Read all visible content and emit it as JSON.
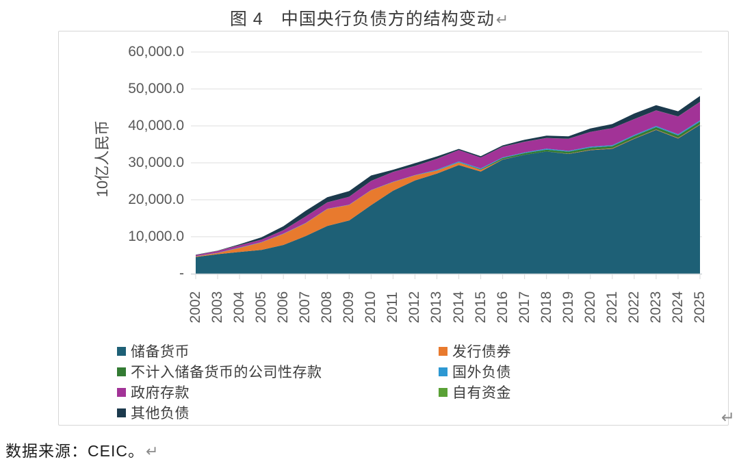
{
  "doc": {
    "title": "图 4　中国央行负债方的结构变动",
    "return_mark": "↵",
    "source": "数据来源：CEIC。"
  },
  "chart_data": {
    "type": "area",
    "stacked": true,
    "title": "中国央行负债方的结构变动",
    "xlabel": "",
    "ylabel": "10亿人民币",
    "ylim": [
      0,
      60000
    ],
    "grid": "horizontal",
    "legend_position": "bottom-two-columns",
    "y_ticks": [
      {
        "value": 60000,
        "label": "60,000.0"
      },
      {
        "value": 50000,
        "label": "50,000.0"
      },
      {
        "value": 40000,
        "label": "40,000.0"
      },
      {
        "value": 30000,
        "label": "30,000.0"
      },
      {
        "value": 20000,
        "label": "20,000.0"
      },
      {
        "value": 10000,
        "label": "10,000.0"
      },
      {
        "value": 0,
        "label": "-"
      }
    ],
    "x": [
      "2002",
      "2003",
      "2004",
      "2005",
      "2006",
      "2007",
      "2008",
      "2009",
      "2010",
      "2011",
      "2012",
      "2013",
      "2014",
      "2015",
      "2016",
      "2017",
      "2018",
      "2019",
      "2020",
      "2021",
      "2022",
      "2023",
      "2024",
      "2025"
    ],
    "series": [
      {
        "name": "储备货币",
        "color": "#1e6076",
        "values": [
          4514,
          5284,
          5886,
          6434,
          7776,
          10155,
          12922,
          14399,
          18531,
          22464,
          25227,
          27100,
          29409,
          27638,
          30886,
          32184,
          33071,
          32416,
          33421,
          33800,
          36500,
          38900,
          36600,
          40300
        ]
      },
      {
        "name": "发行债券",
        "color": "#e87a2e",
        "values": [
          148,
          303,
          1108,
          2030,
          2974,
          3446,
          4578,
          4206,
          4049,
          2332,
          1388,
          779,
          680,
          428,
          66,
          0,
          10,
          70,
          110,
          120,
          130,
          140,
          150,
          150
        ]
      },
      {
        "name": "不计入储备货币的公司性存款",
        "color": "#337b33",
        "values": [
          5,
          5,
          5,
          5,
          5,
          5,
          5,
          5,
          5,
          5,
          10,
          20,
          50,
          170,
          350,
          450,
          500,
          550,
          600,
          600,
          620,
          650,
          680,
          700
        ]
      },
      {
        "name": "国外负债",
        "color": "#2d98d2",
        "values": [
          64,
          82,
          109,
          69,
          97,
          88,
          73,
          77,
          72,
          89,
          66,
          258,
          250,
          268,
          180,
          188,
          253,
          200,
          240,
          260,
          280,
          300,
          320,
          340
        ]
      },
      {
        "name": "政府存款",
        "color": "#a23397",
        "values": [
          289,
          501,
          575,
          671,
          901,
          1730,
          1696,
          2126,
          2431,
          2624,
          2457,
          2923,
          3068,
          2921,
          2867,
          2870,
          2893,
          3262,
          4004,
          4600,
          4300,
          4200,
          4800,
          5000
        ]
      },
      {
        "name": "自有资金",
        "color": "#5aa136",
        "values": [
          22,
          22,
          22,
          22,
          22,
          22,
          22,
          22,
          22,
          22,
          22,
          22,
          22,
          22,
          22,
          22,
          22,
          22,
          22,
          22,
          22,
          22,
          22,
          22
        ]
      },
      {
        "name": "其他负债",
        "color": "#1c3a4d",
        "values": [
          80,
          60,
          250,
          610,
          1070,
          1510,
          1400,
          1530,
          1470,
          600,
          730,
          640,
          300,
          350,
          350,
          550,
          600,
          650,
          900,
          1100,
          1500,
          1400,
          1400,
          1600
        ]
      }
    ],
    "colors": {
      "gridline": "#dcdcdc",
      "axis_line": "#cfd5d8",
      "tick_mark": "#d9d9d9",
      "tick_text": "#595959"
    }
  }
}
